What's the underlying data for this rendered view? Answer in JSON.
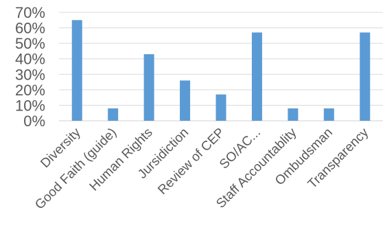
{
  "chart_data": {
    "type": "bar",
    "categories": [
      "Diversity",
      "Good Faith (guide)",
      "Human Rights",
      "Jursidiction",
      "Review of CEP",
      "SO/AC...",
      "Staff Accountablity",
      "Ombudsman",
      "Transparency"
    ],
    "values": [
      65,
      8,
      43,
      26,
      17,
      57,
      8,
      8,
      57
    ],
    "value_format": "percent",
    "ylim": [
      0,
      70
    ],
    "yticks": [
      0,
      10,
      20,
      30,
      40,
      50,
      60,
      70
    ],
    "ytick_labels": [
      "0%",
      "10%",
      "20%",
      "30%",
      "40%",
      "50%",
      "60%",
      "70%"
    ],
    "grid": true,
    "legend": "none",
    "title": "",
    "xlabel": "",
    "ylabel": "",
    "colors": {
      "bar": "#5B9BD5",
      "grid": "#D9D9D9",
      "text": "#595959"
    }
  }
}
